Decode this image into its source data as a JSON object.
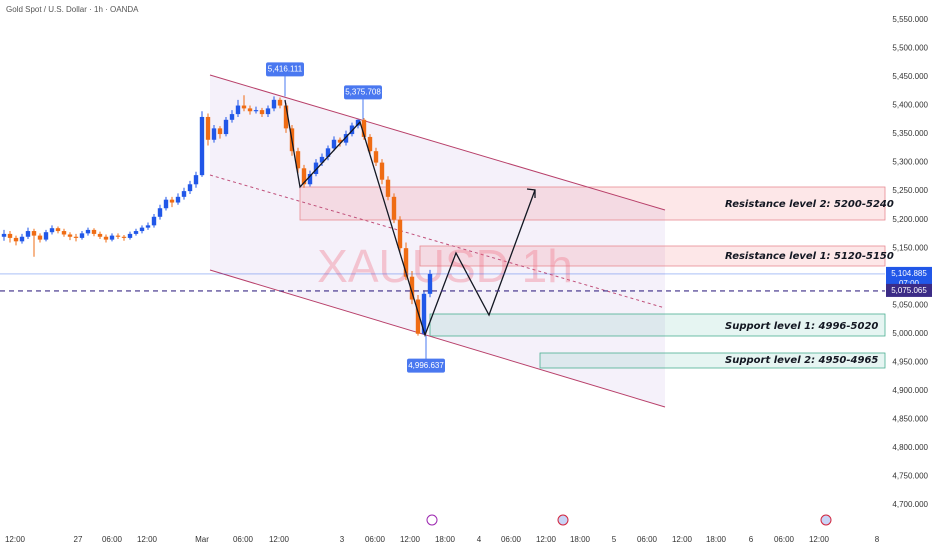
{
  "chart_data": {
    "type": "candlestick",
    "title": "Gold Spot / U.S. Dollar · 1h · OANDA",
    "watermark": "XAUUSD 1h",
    "up_color": "#2157e8",
    "down_color": "#ef6c14",
    "ylim": [
      4656,
      5585
    ],
    "yticks": [
      {
        "value": 5550,
        "label": "5,550.000"
      },
      {
        "value": 5500,
        "label": "5,500.000"
      },
      {
        "value": 5450,
        "label": "5,450.000"
      },
      {
        "value": 5400,
        "label": "5,400.000"
      },
      {
        "value": 5350,
        "label": "5,350.000"
      },
      {
        "value": 5300,
        "label": "5,300.000"
      },
      {
        "value": 5250,
        "label": "5,250.000"
      },
      {
        "value": 5200,
        "label": "5,200.000"
      },
      {
        "value": 5150,
        "label": "5,150.000"
      },
      {
        "value": 5100,
        "label": "5,100.000"
      },
      {
        "value": 5050,
        "label": "5,050.000"
      },
      {
        "value": 5000,
        "label": "5,000.000"
      },
      {
        "value": 4950,
        "label": "4,950.000"
      },
      {
        "value": 4900,
        "label": "4,900.000"
      },
      {
        "value": 4850,
        "label": "4,850.000"
      },
      {
        "value": 4800,
        "label": "4,800.000"
      },
      {
        "value": 4750,
        "label": "4,750.000"
      },
      {
        "value": 4700,
        "label": "4,700.000"
      }
    ],
    "x_labels": [
      "12:00",
      "27",
      "06:00",
      "12:00",
      "Mar",
      "06:00",
      "12:00",
      "3",
      "06:00",
      "12:00",
      "18:00",
      "4",
      "06:00",
      "12:00",
      "18:00",
      "5",
      "06:00",
      "12:00",
      "18:00",
      "6",
      "06:00",
      "12:00",
      "8"
    ],
    "ohlc": [
      [
        5170,
        5182,
        5163,
        5175
      ],
      [
        5175,
        5180,
        5160,
        5168
      ],
      [
        5168,
        5172,
        5155,
        5162
      ],
      [
        5162,
        5175,
        5158,
        5170
      ],
      [
        5170,
        5186,
        5166,
        5180
      ],
      [
        5180,
        5184,
        5135,
        5172
      ],
      [
        5172,
        5176,
        5160,
        5165
      ],
      [
        5165,
        5182,
        5162,
        5178
      ],
      [
        5178,
        5190,
        5174,
        5185
      ],
      [
        5185,
        5188,
        5176,
        5180
      ],
      [
        5180,
        5184,
        5170,
        5174
      ],
      [
        5174,
        5178,
        5164,
        5170
      ],
      [
        5170,
        5175,
        5162,
        5168
      ],
      [
        5168,
        5180,
        5165,
        5176
      ],
      [
        5176,
        5186,
        5172,
        5182
      ],
      [
        5182,
        5185,
        5171,
        5175
      ],
      [
        5175,
        5179,
        5166,
        5170
      ],
      [
        5170,
        5174,
        5160,
        5165
      ],
      [
        5165,
        5176,
        5162,
        5172
      ],
      [
        5172,
        5176,
        5166,
        5170
      ],
      [
        5170,
        5173,
        5163,
        5168
      ],
      [
        5168,
        5179,
        5165,
        5175
      ],
      [
        5175,
        5184,
        5172,
        5180
      ],
      [
        5180,
        5190,
        5176,
        5186
      ],
      [
        5186,
        5195,
        5182,
        5190
      ],
      [
        5190,
        5210,
        5186,
        5205
      ],
      [
        5205,
        5226,
        5200,
        5220
      ],
      [
        5220,
        5240,
        5216,
        5235
      ],
      [
        5235,
        5240,
        5222,
        5230
      ],
      [
        5230,
        5246,
        5226,
        5240
      ],
      [
        5240,
        5256,
        5235,
        5250
      ],
      [
        5250,
        5268,
        5245,
        5262
      ],
      [
        5262,
        5284,
        5256,
        5278
      ],
      [
        5278,
        5390,
        5275,
        5380
      ],
      [
        5380,
        5386,
        5330,
        5340
      ],
      [
        5340,
        5366,
        5335,
        5360
      ],
      [
        5360,
        5364,
        5342,
        5350
      ],
      [
        5350,
        5380,
        5346,
        5375
      ],
      [
        5375,
        5392,
        5370,
        5385
      ],
      [
        5385,
        5410,
        5380,
        5400
      ],
      [
        5400,
        5418,
        5390,
        5395
      ],
      [
        5395,
        5400,
        5384,
        5390
      ],
      [
        5390,
        5398,
        5386,
        5392
      ],
      [
        5392,
        5396,
        5380,
        5385
      ],
      [
        5385,
        5400,
        5380,
        5395
      ],
      [
        5395,
        5416.111,
        5390,
        5410
      ],
      [
        5410,
        5414,
        5395,
        5400
      ],
      [
        5400,
        5404,
        5352,
        5360
      ],
      [
        5360,
        5366,
        5312,
        5320
      ],
      [
        5320,
        5326,
        5282,
        5290
      ],
      [
        5290,
        5296,
        5256,
        5262
      ],
      [
        5262,
        5286,
        5258,
        5280
      ],
      [
        5280,
        5306,
        5276,
        5300
      ],
      [
        5300,
        5316,
        5294,
        5310
      ],
      [
        5310,
        5330,
        5304,
        5325
      ],
      [
        5325,
        5346,
        5320,
        5340
      ],
      [
        5340,
        5344,
        5328,
        5335
      ],
      [
        5335,
        5356,
        5330,
        5350
      ],
      [
        5350,
        5370,
        5346,
        5365
      ],
      [
        5365,
        5375.708,
        5360,
        5375
      ],
      [
        5375,
        5378,
        5340,
        5345
      ],
      [
        5345,
        5350,
        5315,
        5320
      ],
      [
        5320,
        5326,
        5294,
        5300
      ],
      [
        5300,
        5306,
        5262,
        5270
      ],
      [
        5270,
        5276,
        5234,
        5240
      ],
      [
        5240,
        5246,
        5194,
        5200
      ],
      [
        5200,
        5206,
        5142,
        5150
      ],
      [
        5150,
        5160,
        5094,
        5100
      ],
      [
        5100,
        5110,
        5052,
        5060
      ],
      [
        5060,
        5068,
        4996.637,
        5000
      ],
      [
        5000,
        5076,
        4998,
        5070
      ],
      [
        5070,
        5112,
        5064,
        5104.885
      ]
    ],
    "callouts": [
      {
        "value": 5416.111,
        "label": "5,416.111"
      },
      {
        "value": 5375.708,
        "label": "5,375.708"
      },
      {
        "value": 4996.637,
        "label": "4,996.637"
      }
    ],
    "price_lines": [
      {
        "value": 5104.885,
        "label": "5,104.885",
        "time": "07:00",
        "color": "#2157e8"
      },
      {
        "value": 5075.065,
        "label": "5,075.065",
        "color": "#3b2b86"
      }
    ],
    "annotations": [
      "Resistance level 2: 5200-5240",
      "Resistance level 1: 5120-5150",
      "Support level 1: 4996-5020",
      "Support level 2: 4950-4965"
    ]
  }
}
